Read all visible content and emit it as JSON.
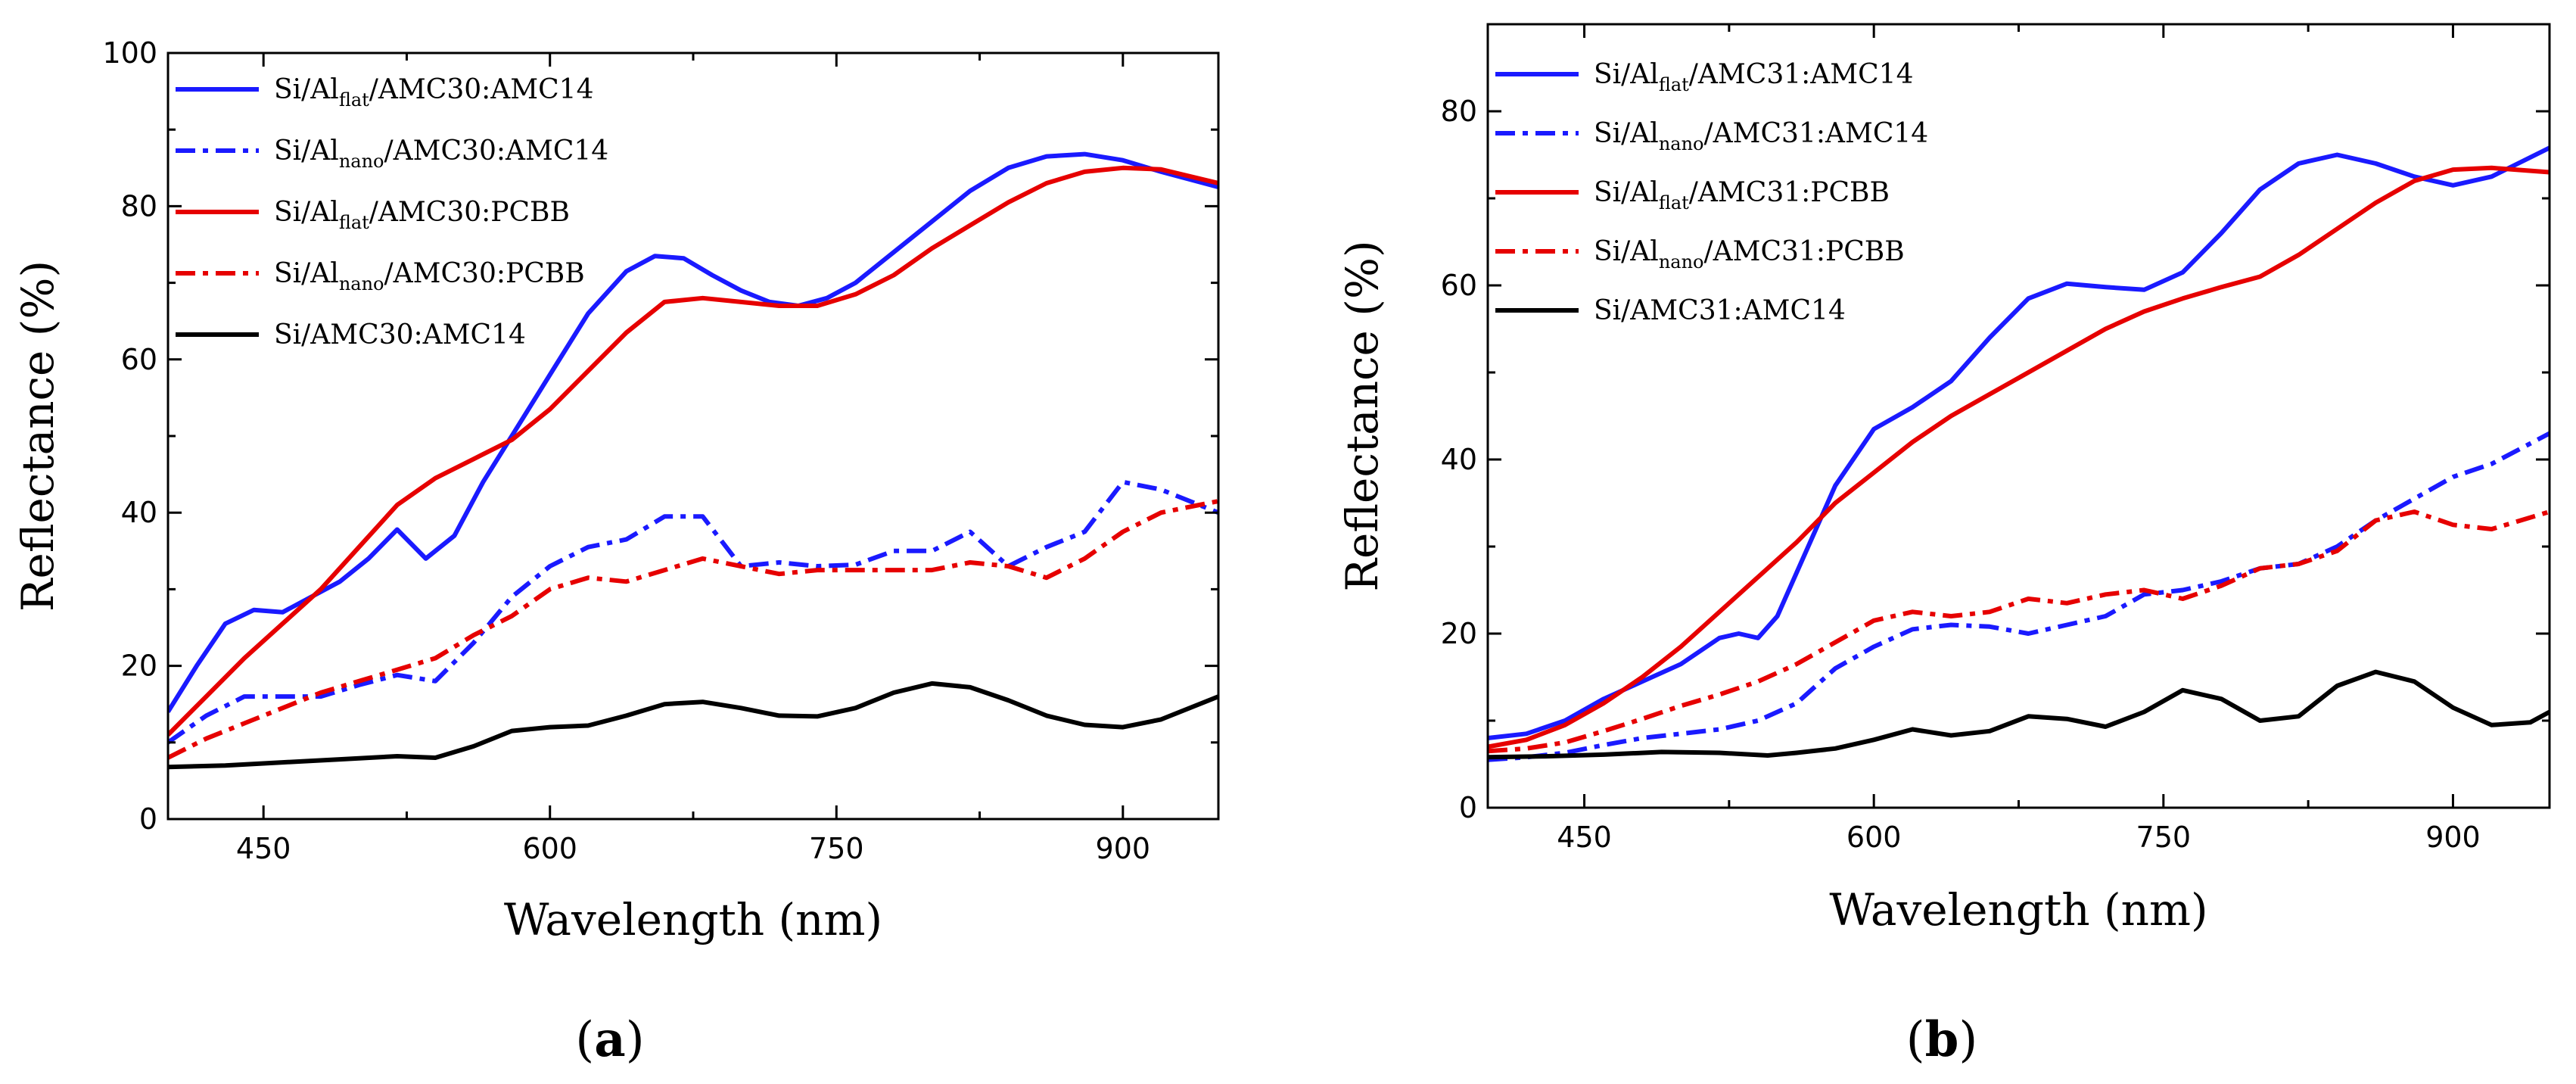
{
  "chart_data": [
    {
      "type": "line",
      "panel_label": "(a)",
      "panel_letter": "a",
      "xlabel": "Wavelength (nm)",
      "ylabel": "Reflectance (%)",
      "xlim": [
        400,
        950
      ],
      "ylim": [
        0,
        100
      ],
      "xticks": [
        450,
        600,
        750,
        900
      ],
      "yticks": [
        0,
        20,
        40,
        60,
        80,
        100
      ],
      "legend_position": "top-left",
      "series": [
        {
          "name": "Si/Al_flat/AMC30:AMC14",
          "legend_parts": [
            "Si/Al",
            "flat",
            "/AMC30:AMC14"
          ],
          "color": "#1a1aff",
          "style": "solid",
          "x": [
            400,
            415,
            430,
            445,
            460,
            475,
            490,
            505,
            520,
            535,
            550,
            565,
            580,
            600,
            620,
            640,
            655,
            670,
            685,
            700,
            715,
            730,
            745,
            760,
            780,
            800,
            820,
            840,
            860,
            880,
            900,
            920,
            950
          ],
          "y": [
            14,
            20,
            25.5,
            27.3,
            27,
            29,
            31,
            34,
            37.8,
            34,
            37,
            44,
            50,
            58,
            66,
            71.5,
            73.5,
            73.2,
            71,
            69,
            67.5,
            67,
            68,
            70,
            74,
            78,
            82,
            85,
            86.5,
            86.8,
            86,
            84.5,
            82.5
          ]
        },
        {
          "name": "Si/Al_nano/AMC30:AMC14",
          "legend_parts": [
            "Si/Al",
            "nano",
            "/AMC30:AMC14"
          ],
          "color": "#1a1aff",
          "style": "dashdot",
          "x": [
            400,
            420,
            440,
            460,
            480,
            500,
            520,
            540,
            560,
            580,
            600,
            620,
            640,
            660,
            680,
            700,
            720,
            740,
            760,
            780,
            800,
            820,
            840,
            860,
            880,
            900,
            920,
            950
          ],
          "y": [
            10,
            13.5,
            16,
            16,
            16,
            17.5,
            18.8,
            18,
            23,
            29,
            33,
            35.5,
            36.5,
            39.5,
            39.5,
            33,
            33.5,
            33,
            33.2,
            35,
            35,
            37.5,
            33,
            35.5,
            37.5,
            44,
            43,
            40
          ]
        },
        {
          "name": "Si/Al_flat/AMC30:PCBB",
          "legend_parts": [
            "Si/Al",
            "flat",
            "/AMC30:PCBB"
          ],
          "color": "#e60000",
          "style": "solid",
          "x": [
            400,
            420,
            440,
            460,
            480,
            500,
            520,
            540,
            560,
            580,
            600,
            620,
            640,
            660,
            680,
            700,
            720,
            740,
            760,
            780,
            800,
            820,
            840,
            860,
            880,
            900,
            920,
            950
          ],
          "y": [
            11,
            16,
            21,
            25.5,
            30,
            35.5,
            41,
            44.5,
            47,
            49.5,
            53.5,
            58.5,
            63.5,
            67.5,
            68,
            67.5,
            67,
            67,
            68.5,
            71,
            74.5,
            77.5,
            80.5,
            83,
            84.5,
            85,
            84.8,
            83
          ]
        },
        {
          "name": "Si/Al_nano/AMC30:PCBB",
          "legend_parts": [
            "Si/Al",
            "nano",
            "/AMC30:PCBB"
          ],
          "color": "#e60000",
          "style": "dashdot",
          "x": [
            400,
            420,
            440,
            460,
            480,
            500,
            520,
            540,
            560,
            580,
            600,
            620,
            640,
            660,
            680,
            700,
            720,
            740,
            760,
            780,
            800,
            820,
            840,
            860,
            880,
            900,
            920,
            950
          ],
          "y": [
            8,
            10.5,
            12.5,
            14.5,
            16.5,
            18,
            19.5,
            21,
            24,
            26.5,
            30,
            31.5,
            31,
            32.5,
            34,
            33,
            32,
            32.5,
            32.5,
            32.5,
            32.5,
            33.5,
            33,
            31.5,
            34,
            37.5,
            40,
            41.5
          ]
        },
        {
          "name": "Si/AMC30:AMC14",
          "legend_parts": [
            "Si/AMC30:AMC14",
            "",
            ""
          ],
          "color": "#000000",
          "style": "solid",
          "x": [
            400,
            430,
            460,
            490,
            520,
            540,
            560,
            580,
            600,
            620,
            640,
            660,
            680,
            700,
            720,
            740,
            760,
            780,
            800,
            820,
            840,
            860,
            880,
            900,
            920,
            950
          ],
          "y": [
            6.8,
            7,
            7.4,
            7.8,
            8.2,
            8,
            9.5,
            11.5,
            12,
            12.2,
            13.5,
            15,
            15.3,
            14.5,
            13.5,
            13.4,
            14.5,
            16.5,
            17.7,
            17.2,
            15.5,
            13.5,
            12.3,
            12,
            13,
            16
          ]
        }
      ]
    },
    {
      "type": "line",
      "panel_label": "(b)",
      "panel_letter": "b",
      "xlabel": "Wavelength (nm)",
      "ylabel": "Reflectance (%)",
      "xlim": [
        400,
        950
      ],
      "ylim": [
        0,
        90
      ],
      "xticks": [
        450,
        600,
        750,
        900
      ],
      "yticks": [
        0,
        20,
        40,
        60,
        80
      ],
      "legend_position": "top-left",
      "series": [
        {
          "name": "Si/Al_flat/AMC31:AMC14",
          "legend_parts": [
            "Si/Al",
            "flat",
            "/AMC31:AMC14"
          ],
          "color": "#1a1aff",
          "style": "solid",
          "x": [
            400,
            420,
            440,
            460,
            480,
            500,
            520,
            530,
            540,
            550,
            560,
            580,
            600,
            620,
            640,
            660,
            680,
            700,
            720,
            740,
            760,
            780,
            800,
            820,
            840,
            860,
            880,
            900,
            920,
            950
          ],
          "y": [
            8,
            8.5,
            10,
            12.5,
            14.5,
            16.5,
            19.5,
            20,
            19.5,
            22,
            27,
            37,
            43.5,
            46,
            49,
            54,
            58.5,
            60.2,
            59.8,
            59.5,
            61.5,
            66,
            71,
            74,
            75,
            74,
            72.5,
            71.5,
            72.5,
            75.8
          ]
        },
        {
          "name": "Si/Al_nano/AMC31:AMC14",
          "legend_parts": [
            "Si/Al",
            "nano",
            "/AMC31:AMC14"
          ],
          "color": "#1a1aff",
          "style": "dashdot",
          "x": [
            400,
            420,
            440,
            460,
            480,
            500,
            520,
            540,
            560,
            580,
            600,
            620,
            640,
            660,
            680,
            700,
            720,
            740,
            760,
            780,
            800,
            820,
            840,
            860,
            880,
            900,
            920,
            950
          ],
          "y": [
            5.5,
            5.8,
            6.3,
            7.2,
            8,
            8.5,
            9,
            10,
            12,
            16,
            18.5,
            20.5,
            21,
            20.8,
            20,
            21,
            22,
            24.5,
            25,
            26,
            27.5,
            28,
            30,
            33,
            35.5,
            38,
            39.5,
            43
          ]
        },
        {
          "name": "Si/Al_flat/AMC31:PCBB",
          "legend_parts": [
            "Si/Al",
            "flat",
            "/AMC31:PCBB"
          ],
          "color": "#e60000",
          "style": "solid",
          "x": [
            400,
            420,
            440,
            460,
            480,
            500,
            520,
            540,
            560,
            580,
            600,
            620,
            640,
            660,
            680,
            700,
            720,
            740,
            760,
            780,
            800,
            820,
            840,
            860,
            880,
            900,
            920,
            950
          ],
          "y": [
            7,
            7.8,
            9.5,
            12,
            15,
            18.5,
            22.5,
            26.5,
            30.5,
            35,
            38.5,
            42,
            45,
            47.5,
            50,
            52.5,
            55,
            57,
            58.5,
            59.8,
            61,
            63.5,
            66.5,
            69.5,
            72,
            73.3,
            73.5,
            73
          ]
        },
        {
          "name": "Si/Al_nano/AMC31:PCBB",
          "legend_parts": [
            "Si/Al",
            "nano",
            "/AMC31:PCBB"
          ],
          "color": "#e60000",
          "style": "dashdot",
          "x": [
            400,
            420,
            440,
            460,
            480,
            500,
            520,
            540,
            560,
            580,
            600,
            620,
            640,
            660,
            680,
            700,
            720,
            740,
            760,
            780,
            800,
            820,
            840,
            860,
            880,
            900,
            920,
            950
          ],
          "y": [
            6.5,
            6.8,
            7.5,
            8.8,
            10.2,
            11.7,
            13,
            14.5,
            16.5,
            19,
            21.5,
            22.5,
            22,
            22.5,
            24,
            23.5,
            24.5,
            25,
            24,
            25.5,
            27.5,
            28,
            29.5,
            33,
            34,
            32.5,
            32,
            34
          ]
        },
        {
          "name": "Si/AMC31:AMC14",
          "legend_parts": [
            "Si/AMC31:AMC14",
            "",
            ""
          ],
          "color": "#000000",
          "style": "solid",
          "x": [
            400,
            430,
            460,
            490,
            520,
            545,
            560,
            580,
            600,
            620,
            640,
            660,
            680,
            700,
            720,
            740,
            760,
            780,
            800,
            820,
            840,
            860,
            880,
            900,
            920,
            940,
            950
          ],
          "y": [
            5.8,
            5.9,
            6.1,
            6.4,
            6.3,
            6,
            6.3,
            6.8,
            7.8,
            9,
            8.3,
            8.8,
            10.5,
            10.2,
            9.3,
            11,
            13.5,
            12.5,
            10,
            10.5,
            14,
            15.6,
            14.5,
            11.5,
            9.5,
            9.8,
            11
          ]
        }
      ]
    }
  ]
}
